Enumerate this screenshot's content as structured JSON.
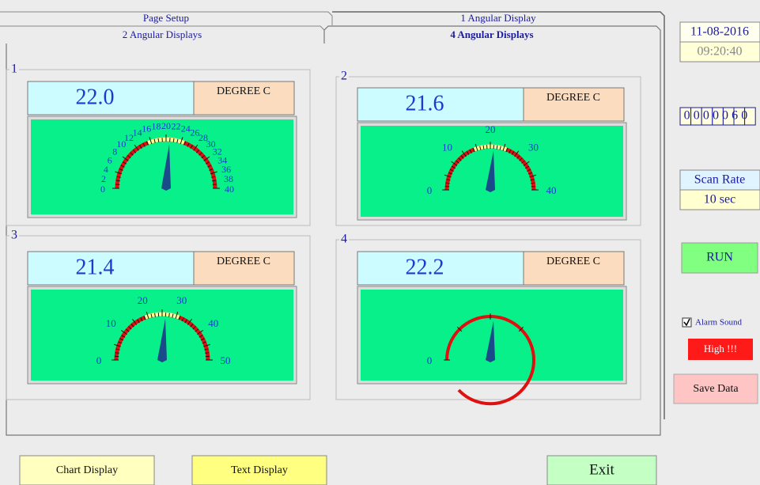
{
  "tabs": [
    "Page Setup",
    "1 Angular Display",
    "2 Angular Displays",
    "4 Angular Displays"
  ],
  "gauges": [
    {
      "label": "1",
      "value": "22.0",
      "unit": "DEGREE C",
      "ticks": [
        0,
        2,
        4,
        6,
        8,
        10,
        12,
        14,
        16,
        18,
        20,
        22,
        24,
        26,
        28,
        30,
        32,
        34,
        36,
        38,
        40
      ]
    },
    {
      "label": "2",
      "value": "21.6",
      "unit": "DEGREE C",
      "ticks": [
        0,
        10,
        20,
        30,
        40
      ]
    },
    {
      "label": "3",
      "value": "21.4",
      "unit": "DEGREE C",
      "ticks": [
        0,
        10,
        20,
        30,
        40,
        50
      ]
    },
    {
      "label": "4",
      "value": "22.2",
      "unit": "DEGREE C",
      "ticks": [
        0
      ]
    }
  ],
  "side": {
    "date": "11-08-2016",
    "time": "09:20:40",
    "counter": "0000060",
    "scan_rate_label": "Scan Rate",
    "scan_rate": "10 sec",
    "run": "RUN",
    "alarm_sound": "Alarm Sound",
    "alarm_status": "High !!!",
    "save": "Save Data"
  },
  "buttons": [
    "Chart Display",
    "Text Display",
    "Exit"
  ]
}
